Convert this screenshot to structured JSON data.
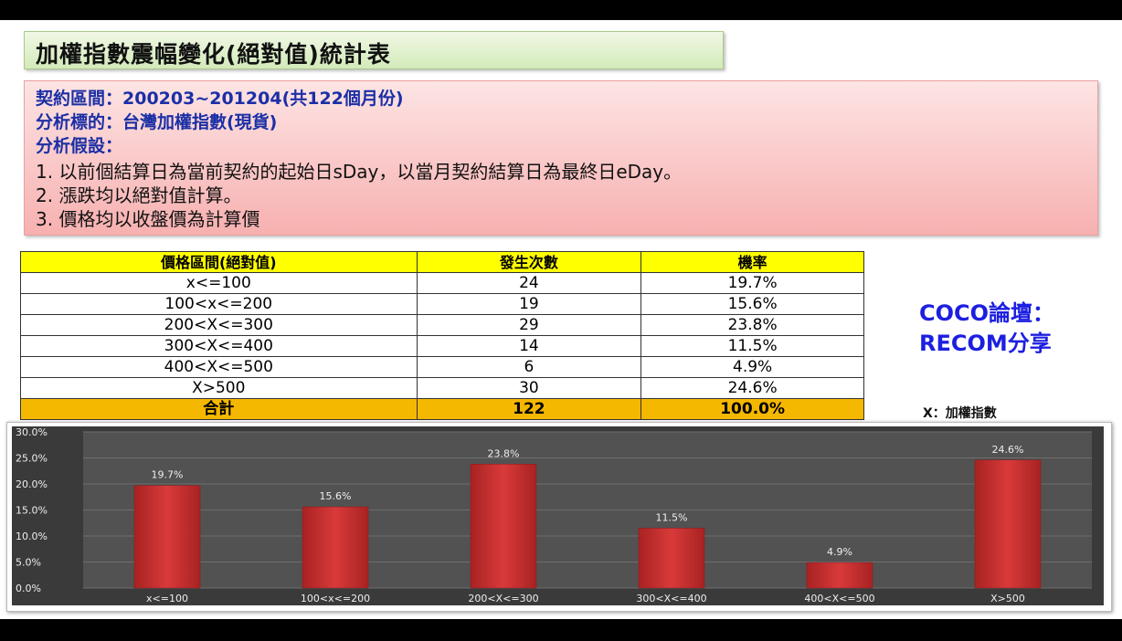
{
  "title": "加權指數震幅變化(絕對值)統計表",
  "info": {
    "contract_period": "契約區間：200203~201204(共122個月份)",
    "target": "分析標的：台灣加權指數(現貨)",
    "assumptions_label": "分析假設：",
    "assumptions": [
      "1.  以前個結算日為當前契約的起始日sDay，以當月契約結算日為最終日eDay。",
      "2.  漲跌均以絕對值計算。",
      "3.  價格均以收盤價為計算價"
    ]
  },
  "table": {
    "headers": [
      "價格區間(絕對值)",
      "發生次數",
      "機率"
    ],
    "rows": [
      [
        "x<=100",
        "24",
        "19.7%"
      ],
      [
        "100<x<=200",
        "19",
        "15.6%"
      ],
      [
        "200<X<=300",
        "29",
        "23.8%"
      ],
      [
        "300<X<=400",
        "14",
        "11.5%"
      ],
      [
        "400<X<=500",
        "6",
        "4.9%"
      ],
      [
        "X>500",
        "30",
        "24.6%"
      ]
    ],
    "total": [
      "合計",
      "122",
      "100.0%"
    ]
  },
  "side_note": {
    "line1": "COCO論壇：",
    "line2": "RECOM分享"
  },
  "x_note": "X：加權指數",
  "colors": {
    "bar": "#d93a3a",
    "plot_bg": "#525252",
    "header_yellow": "#ffff00",
    "total_orange": "#f5b800"
  },
  "chart_data": {
    "type": "bar",
    "categories": [
      "x<=100",
      "100<x<=200",
      "200<X<=300",
      "300<X<=400",
      "400<X<=500",
      "X>500"
    ],
    "values": [
      19.7,
      15.6,
      23.8,
      11.5,
      4.9,
      24.6
    ],
    "labels": [
      "19.7%",
      "15.6%",
      "23.8%",
      "11.5%",
      "4.9%",
      "24.6%"
    ],
    "yticks": [
      "0.0%",
      "5.0%",
      "10.0%",
      "15.0%",
      "20.0%",
      "25.0%",
      "30.0%"
    ],
    "ylim": [
      0,
      30
    ],
    "grid": true
  }
}
